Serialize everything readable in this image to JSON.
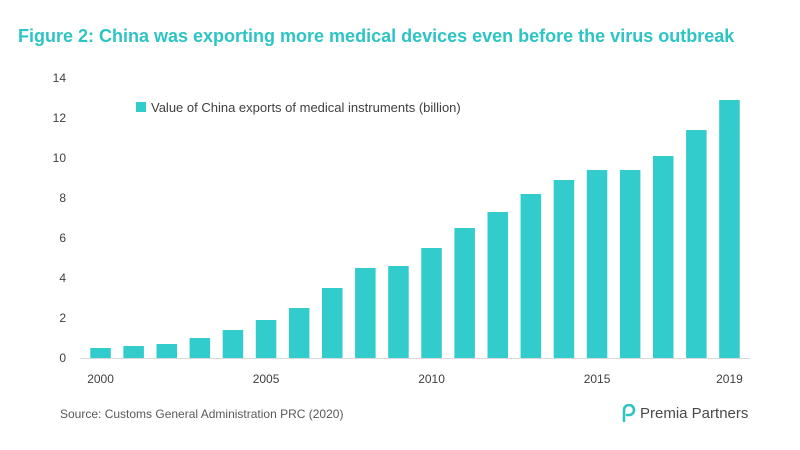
{
  "title": "Figure 2: China was exporting more medical devices even before the virus outbreak",
  "source": "Source:  Customs  General  Administration  PRC (2020)",
  "logo": {
    "text": "Premia Partners",
    "icon": "premia-logo-icon"
  },
  "colors": {
    "accent": "#2ec4c4",
    "bar": "#33cccc",
    "text": "#404040"
  },
  "chart_data": {
    "type": "bar",
    "categories": [
      "2000",
      "2001",
      "2002",
      "2003",
      "2004",
      "2005",
      "2006",
      "2007",
      "2008",
      "2009",
      "2010",
      "2011",
      "2012",
      "2013",
      "2014",
      "2015",
      "2016",
      "2017",
      "2018",
      "2019"
    ],
    "x_tick_labels": [
      "2000",
      "",
      "",
      "",
      "",
      "2005",
      "",
      "",
      "",
      "",
      "2010",
      "",
      "",
      "",
      "",
      "2015",
      "",
      "",
      "",
      "2019"
    ],
    "series": [
      {
        "name": "Value of China exports of medical instruments (billion)",
        "values": [
          0.5,
          0.6,
          0.7,
          1.0,
          1.4,
          1.9,
          2.5,
          3.5,
          4.5,
          4.6,
          5.5,
          6.5,
          7.3,
          8.2,
          8.9,
          9.4,
          9.4,
          10.1,
          11.4,
          12.9
        ]
      }
    ],
    "ylim": [
      0,
      14
    ],
    "yticks": [
      0,
      2,
      4,
      6,
      8,
      10,
      12,
      14
    ],
    "grid": false,
    "legend_position": "top-left"
  }
}
